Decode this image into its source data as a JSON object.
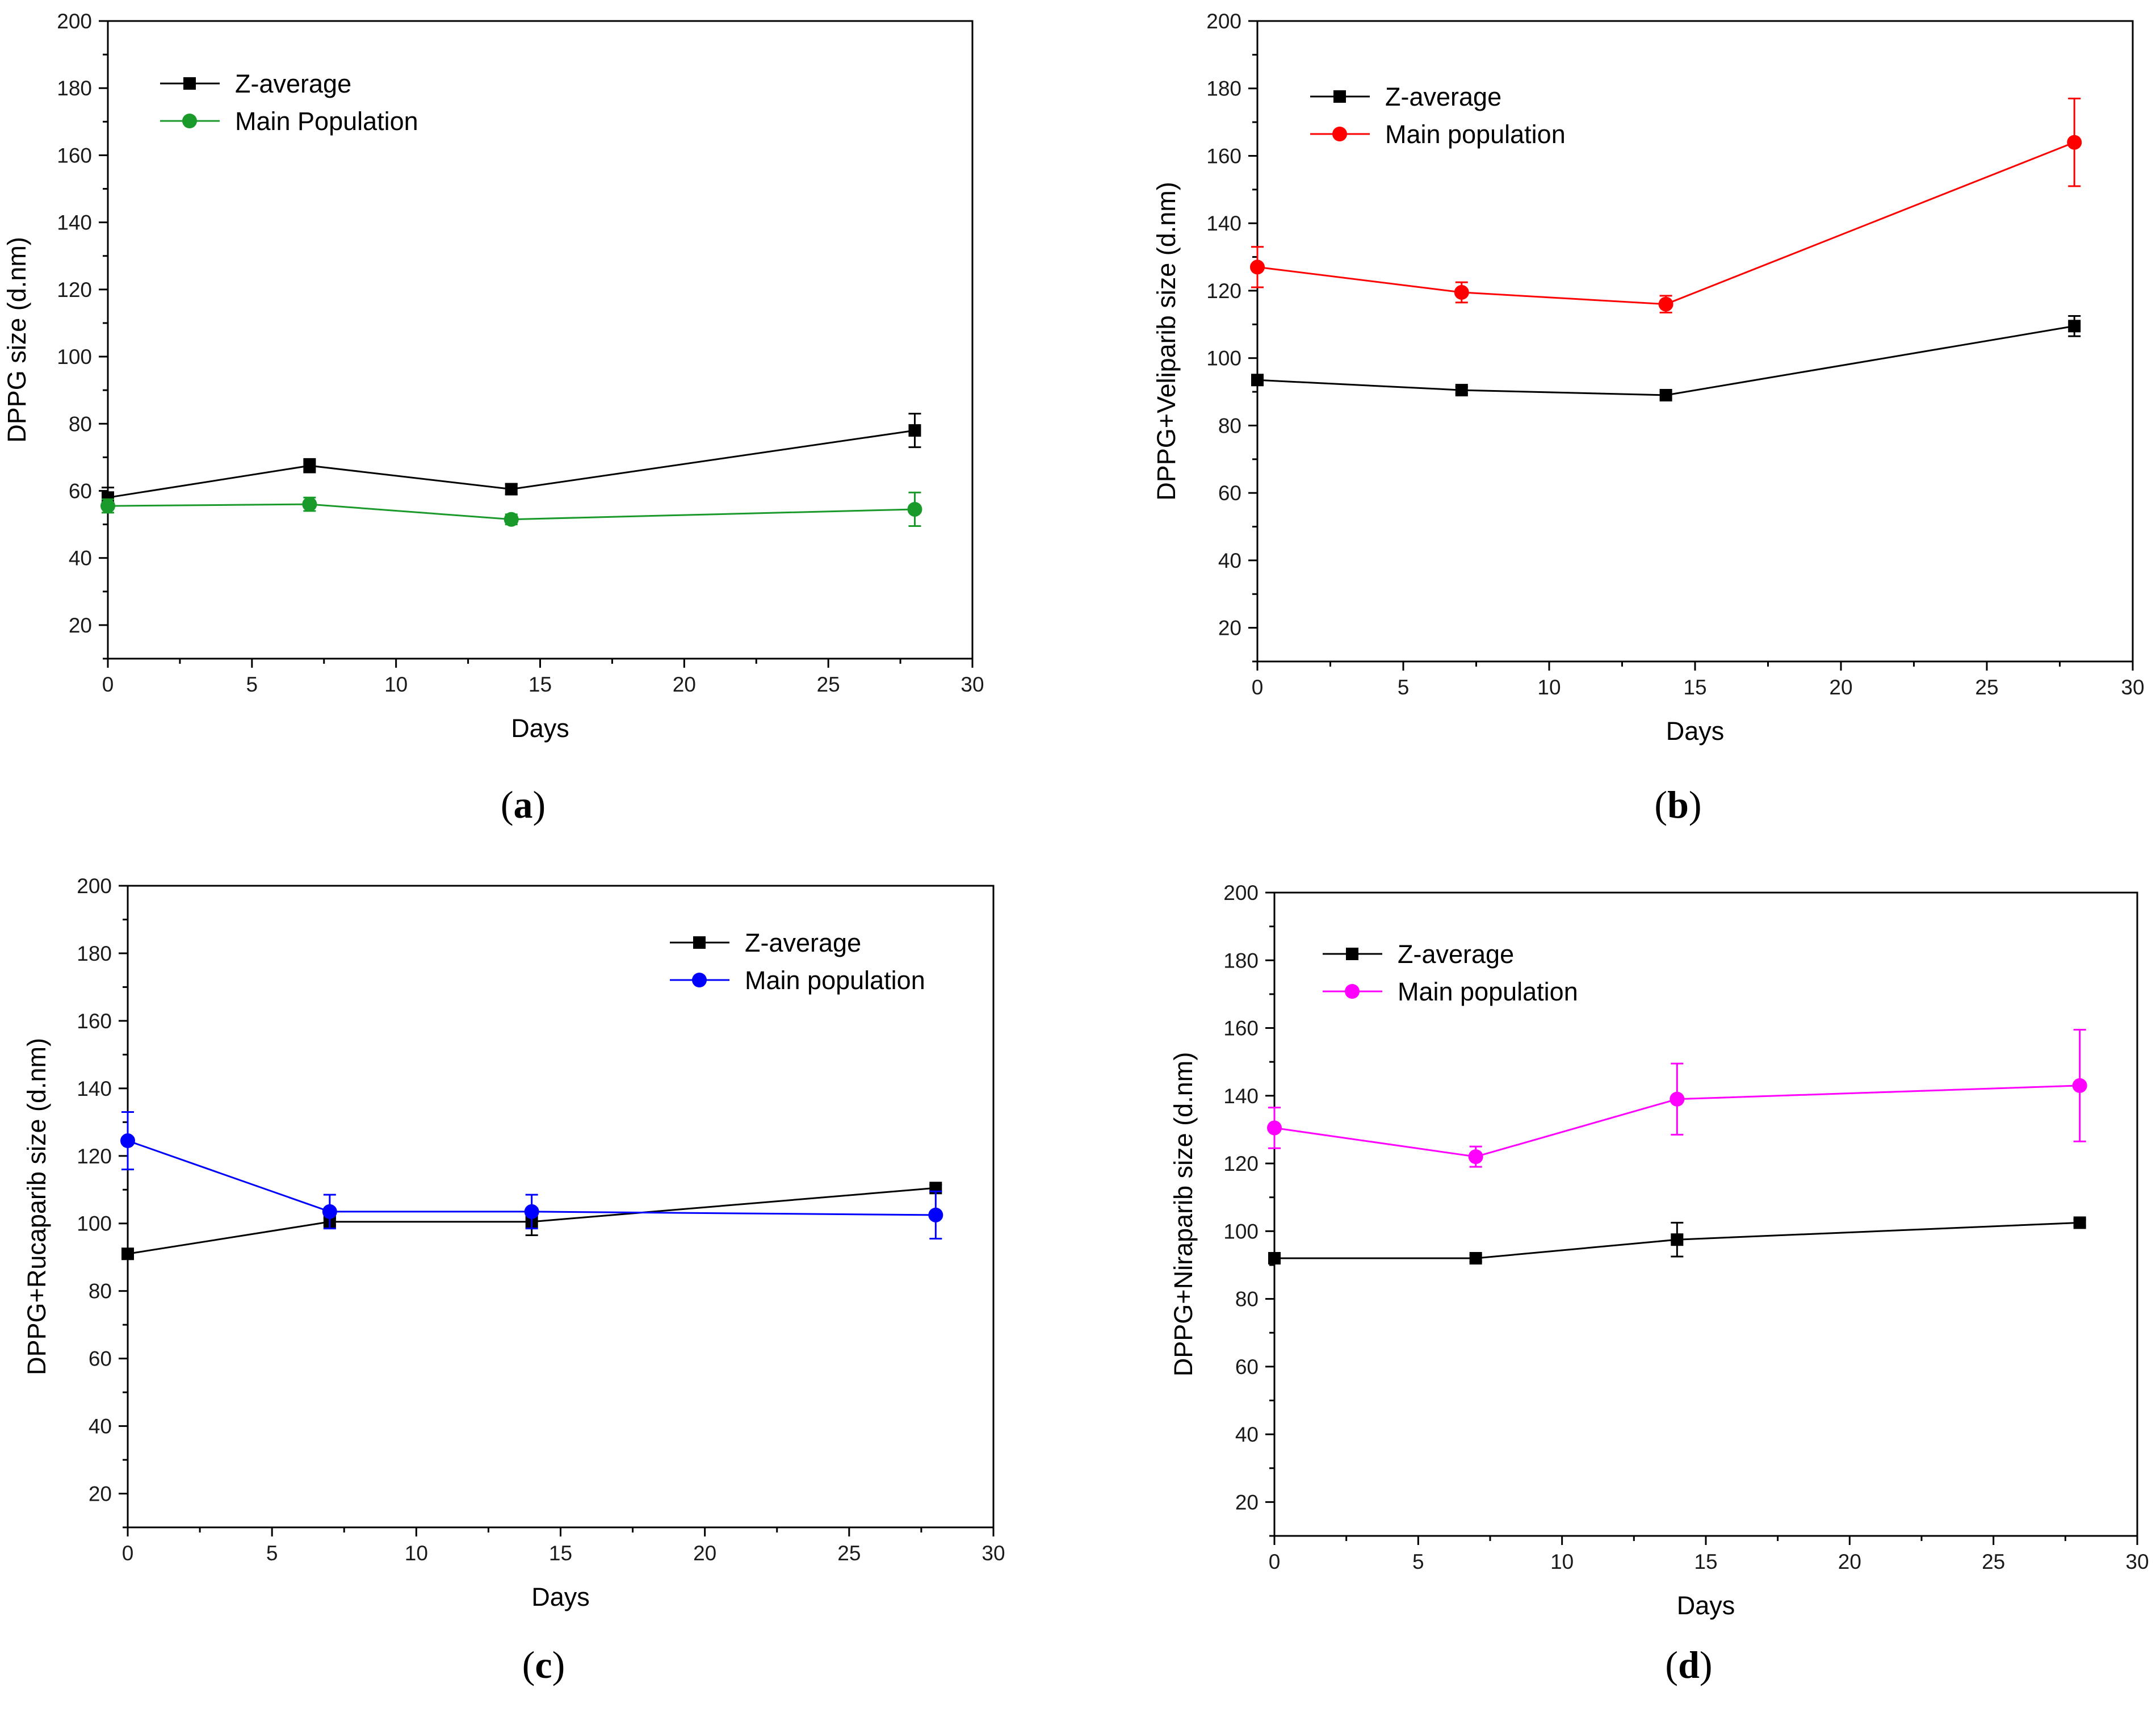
{
  "chart_data": [
    {
      "type": "line",
      "panel": "a",
      "title": "",
      "xlabel": "Days",
      "ylabel": "DPPG size (d.nm)",
      "xlim": [
        0,
        30
      ],
      "ylim": [
        10,
        200
      ],
      "xticks": [
        0,
        5,
        10,
        15,
        20,
        25,
        30
      ],
      "yticks": [
        20,
        40,
        60,
        80,
        100,
        120,
        140,
        160,
        180,
        200
      ],
      "legend_position": "top-left",
      "caption": "a",
      "series": [
        {
          "name": "Z-average",
          "color": "#000000",
          "marker": "square",
          "x": [
            0,
            7,
            14,
            28
          ],
          "values": [
            58,
            67.5,
            60.5,
            78
          ],
          "errors": [
            3,
            2,
            1.5,
            5
          ]
        },
        {
          "name": "Main Population",
          "color": "#1a9a2b",
          "marker": "circle",
          "x": [
            0,
            7,
            14,
            28
          ],
          "values": [
            55.5,
            56,
            51.5,
            54.5
          ],
          "errors": [
            2,
            2,
            1.5,
            5
          ]
        }
      ]
    },
    {
      "type": "line",
      "panel": "b",
      "title": "",
      "xlabel": "Days",
      "ylabel": "DPPG+Veliparib size (d.nm)",
      "xlim": [
        0,
        30
      ],
      "ylim": [
        10,
        200
      ],
      "xticks": [
        0,
        5,
        10,
        15,
        20,
        25,
        30
      ],
      "yticks": [
        20,
        40,
        60,
        80,
        100,
        120,
        140,
        160,
        180,
        200
      ],
      "legend_position": "top-left",
      "caption": "b",
      "series": [
        {
          "name": "Z-average",
          "color": "#000000",
          "marker": "square",
          "x": [
            0,
            7,
            14,
            28
          ],
          "values": [
            93.5,
            90.5,
            89,
            109.5
          ],
          "errors": [
            1,
            1,
            1,
            3
          ]
        },
        {
          "name": "Main population",
          "color": "#ff0000",
          "marker": "circle",
          "x": [
            0,
            7,
            14,
            28
          ],
          "values": [
            127,
            119.5,
            116,
            164
          ],
          "errors": [
            6,
            3,
            2.5,
            13
          ]
        }
      ]
    },
    {
      "type": "line",
      "panel": "c",
      "title": "",
      "xlabel": "Days",
      "ylabel": "DPPG+Rucaparib size (d.nm)",
      "xlim": [
        0,
        30
      ],
      "ylim": [
        10,
        200
      ],
      "xticks": [
        0,
        5,
        10,
        15,
        20,
        25,
        30
      ],
      "yticks": [
        20,
        40,
        60,
        80,
        100,
        120,
        140,
        160,
        180,
        200
      ],
      "legend_position": "top-right",
      "caption": "c",
      "series": [
        {
          "name": "Z-average",
          "color": "#000000",
          "marker": "square",
          "x": [
            0,
            7,
            14,
            28
          ],
          "values": [
            91,
            100.5,
            100.5,
            110.5
          ],
          "errors": [
            1,
            1,
            4,
            1
          ]
        },
        {
          "name": "Main population",
          "color": "#0000ff",
          "marker": "circle",
          "x": [
            0,
            7,
            14,
            28
          ],
          "values": [
            124.5,
            103.5,
            103.5,
            102.5
          ],
          "errors": [
            8.5,
            5,
            5,
            7
          ]
        }
      ]
    },
    {
      "type": "line",
      "panel": "d",
      "title": "",
      "xlabel": "Days",
      "ylabel": "DPPG+Niraparib size (d.nm)",
      "xlim": [
        0,
        30
      ],
      "ylim": [
        10,
        200
      ],
      "xticks": [
        0,
        5,
        10,
        15,
        20,
        25,
        30
      ],
      "yticks": [
        20,
        40,
        60,
        80,
        100,
        120,
        140,
        160,
        180,
        200
      ],
      "legend_position": "top-left",
      "caption": "d",
      "series": [
        {
          "name": "Z-average",
          "color": "#000000",
          "marker": "square",
          "x": [
            0,
            7,
            14,
            28
          ],
          "values": [
            92,
            92,
            97.5,
            102.5
          ],
          "errors": [
            1,
            1,
            5,
            1
          ]
        },
        {
          "name": "Main population",
          "color": "#ff00ff",
          "marker": "circle",
          "x": [
            0,
            7,
            14,
            28
          ],
          "values": [
            130.5,
            122,
            139,
            143
          ],
          "errors": [
            6,
            3,
            10.5,
            16.5
          ]
        }
      ]
    }
  ]
}
